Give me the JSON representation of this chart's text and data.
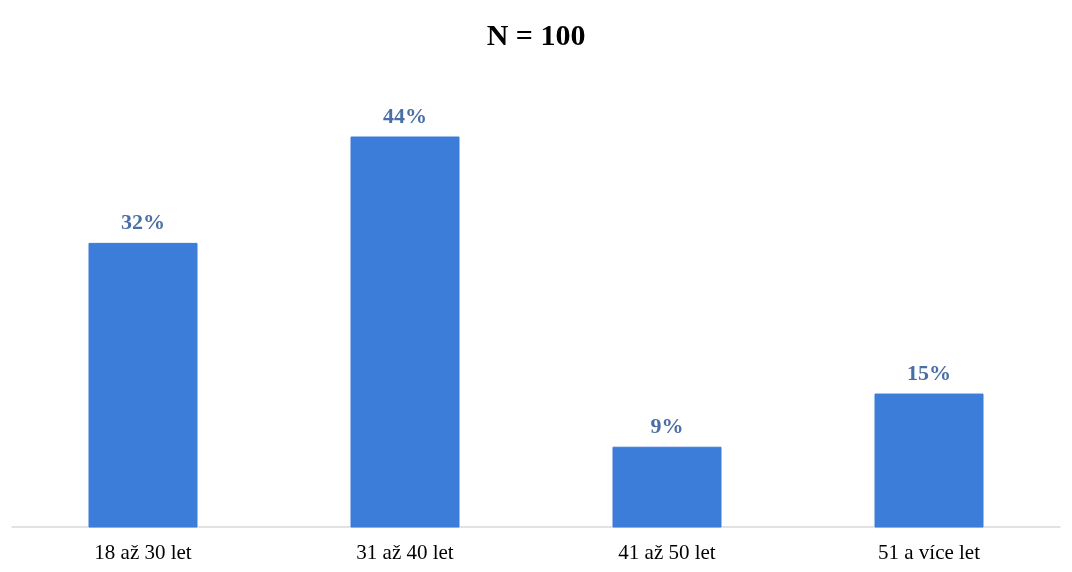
{
  "chart_data": {
    "type": "bar",
    "title": "N = 100",
    "categories": [
      "18 až 30 let",
      "31 až 40 let",
      "41 až 50 let",
      "51 a více let"
    ],
    "values": [
      32,
      44,
      9,
      15
    ],
    "value_labels": [
      "32%",
      "44%",
      "9%",
      "15%"
    ],
    "color": "#3b7dd8"
  }
}
